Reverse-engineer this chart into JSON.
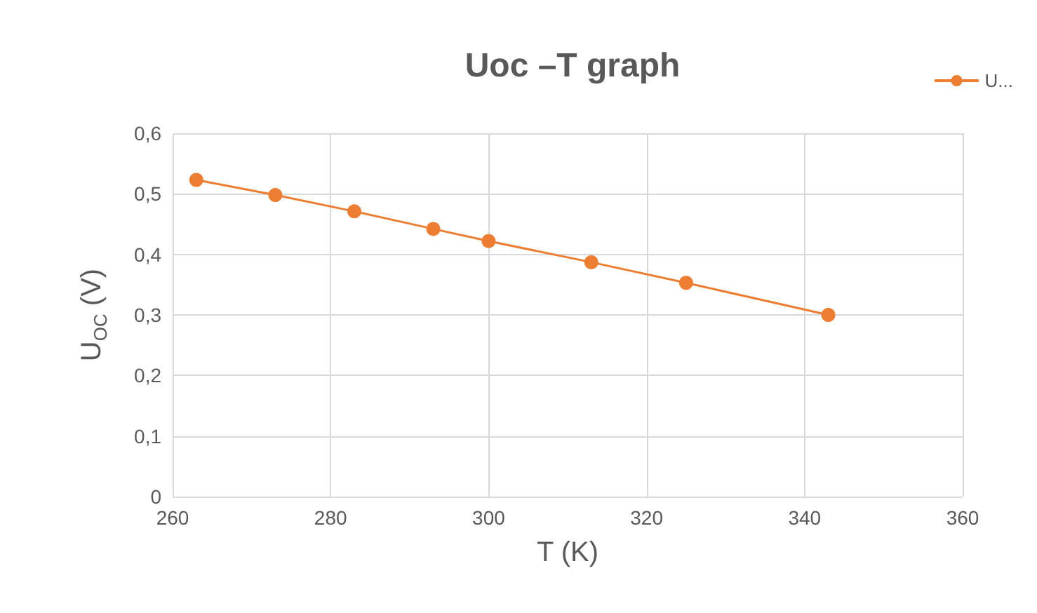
{
  "chart_data": {
    "type": "line",
    "title": "Uoc –T graph",
    "xlabel": "T (K)",
    "ylabel": "U$_{OC}$ (V)",
    "x": [
      263,
      273,
      283,
      293,
      300,
      313,
      325,
      343
    ],
    "series": [
      {
        "name": "U...",
        "color": "#ed7d31",
        "values": [
          0.523,
          0.498,
          0.471,
          0.442,
          0.422,
          0.387,
          0.353,
          0.3
        ]
      }
    ],
    "xlim": [
      260,
      360
    ],
    "xticks": [
      260,
      280,
      300,
      320,
      340,
      360
    ],
    "ylim": [
      0,
      0.6
    ],
    "yticks": [
      0,
      {
        "value": 0.1,
        "label": "0,1"
      },
      {
        "value": 0.2,
        "label": "0,2"
      },
      {
        "value": 0.3,
        "label": "0,3"
      },
      {
        "value": 0.4,
        "label": "0,4"
      },
      {
        "value": 0.5,
        "label": "0,5"
      },
      {
        "value": 0.6,
        "label": "0,6"
      }
    ],
    "grid": true,
    "legend": "top right",
    "marker": "circle",
    "line_style": "solid"
  }
}
